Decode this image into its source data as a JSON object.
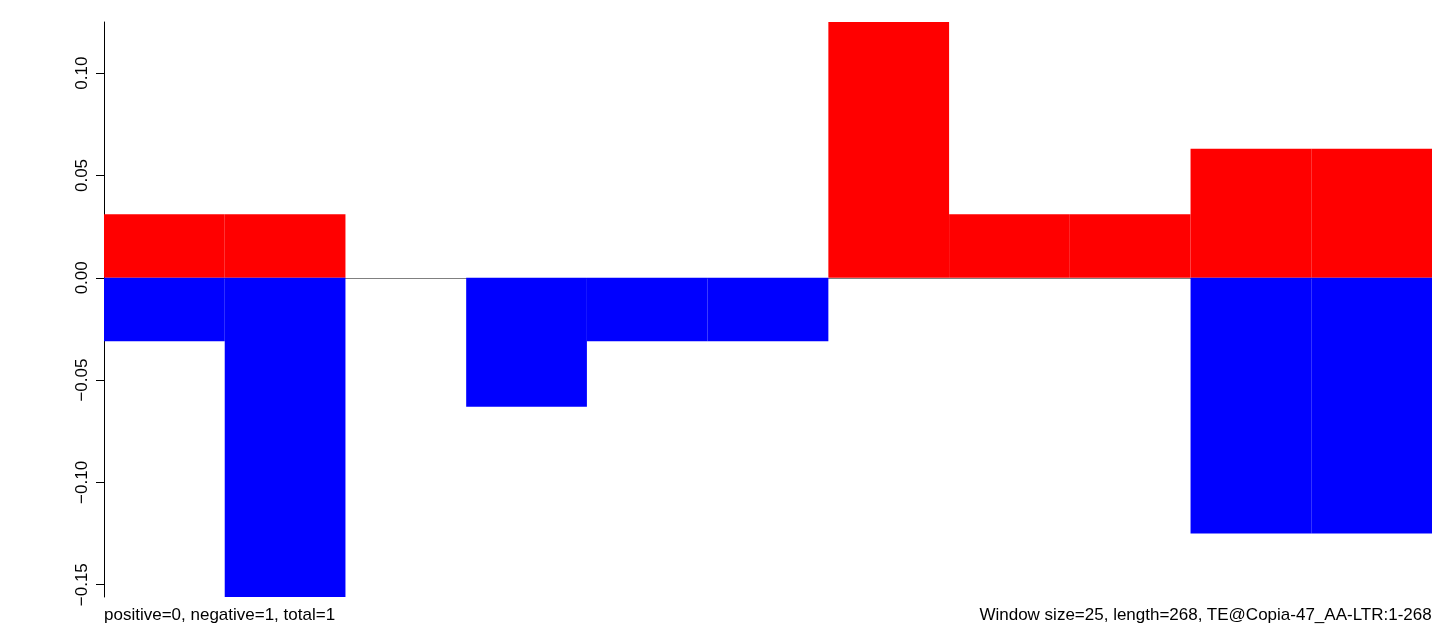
{
  "chart_data": {
    "type": "bar",
    "stacked": true,
    "categories": [
      null,
      null,
      null,
      null,
      null,
      null,
      null,
      null,
      null,
      null,
      null
    ],
    "series": [
      {
        "color": "#ff0000",
        "values": [
          0.031,
          0.031,
          0,
          0,
          0,
          0,
          0.125,
          0.031,
          0.031,
          0.063,
          0.063
        ]
      },
      {
        "color": "#0000ff",
        "values": [
          -0.031,
          -0.156,
          0,
          -0.063,
          -0.031,
          -0.031,
          0,
          0,
          0,
          -0.125,
          -0.125
        ]
      }
    ],
    "ylim": [
      -0.156,
      0.125
    ],
    "yticks": [
      {
        "value": -0.15,
        "label": "−0.15"
      },
      {
        "value": -0.1,
        "label": "−0.10"
      },
      {
        "value": -0.05,
        "label": "−0.05"
      },
      {
        "value": 0,
        "label": "0.00"
      },
      {
        "value": 0.05,
        "label": "0.05"
      },
      {
        "value": 0.1,
        "label": "0.10"
      }
    ],
    "ref_lines": [
      {
        "axis": "y",
        "value": 0,
        "color": "#808080"
      }
    ],
    "grid": false,
    "tick_labels": "y",
    "annotations": [
      "positive=0, negative=1, total=1",
      "Window size=25, length=268, TE@Copia-47_AA-LTR:1-268"
    ]
  }
}
